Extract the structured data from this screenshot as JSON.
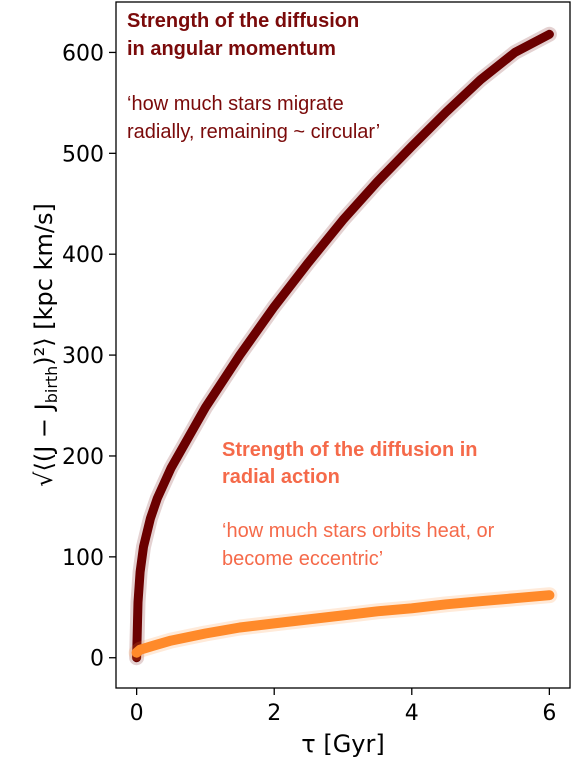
{
  "chart_data": {
    "type": "line",
    "xlabel": "τ [Gyr]",
    "ylabel": {
      "prefix": "√⟨(J − J",
      "subscript": "birth",
      "suffix": ")²⟩ [kpc km/s]"
    },
    "xlim": [
      -0.3,
      6.3
    ],
    "ylim": [
      -30,
      650
    ],
    "xticks": [
      0,
      2,
      4,
      6
    ],
    "yticks": [
      0,
      100,
      200,
      300,
      400,
      500,
      600
    ],
    "grid": false,
    "series": [
      {
        "color": "#6b0000",
        "x": [
          0,
          0.02,
          0.05,
          0.1,
          0.2,
          0.3,
          0.5,
          0.75,
          1.0,
          1.5,
          2.0,
          2.5,
          3.0,
          3.5,
          4.0,
          4.5,
          5.0,
          5.5,
          6.0
        ],
        "y": [
          0,
          55,
          85,
          110,
          138,
          158,
          188,
          218,
          248,
          300,
          348,
          392,
          434,
          472,
          507,
          541,
          573,
          600,
          618
        ]
      },
      {
        "color": "#ff8a2a",
        "x": [
          0,
          0.05,
          0.1,
          0.25,
          0.5,
          1.0,
          1.5,
          2.0,
          2.5,
          3.0,
          3.5,
          4.0,
          4.5,
          5.0,
          5.5,
          6.0
        ],
        "y": [
          5,
          8,
          9,
          12,
          17,
          24,
          30,
          34,
          38,
          42,
          46,
          49,
          53,
          56,
          59,
          62
        ]
      }
    ],
    "annotations": [
      {
        "title_lines": [
          "Strength of the diffusion",
          "in angular momentum"
        ],
        "sub_lines": [
          "‘how much stars migrate",
          "radially, remaining ~ circular’"
        ],
        "color": "#7a0a0a"
      },
      {
        "title_lines": [
          "Strength of the diffusion in",
          "radial action"
        ],
        "sub_lines": [
          "‘how much stars orbits heat, or",
          "become eccentric’"
        ],
        "color": "#f56a4a"
      }
    ]
  }
}
